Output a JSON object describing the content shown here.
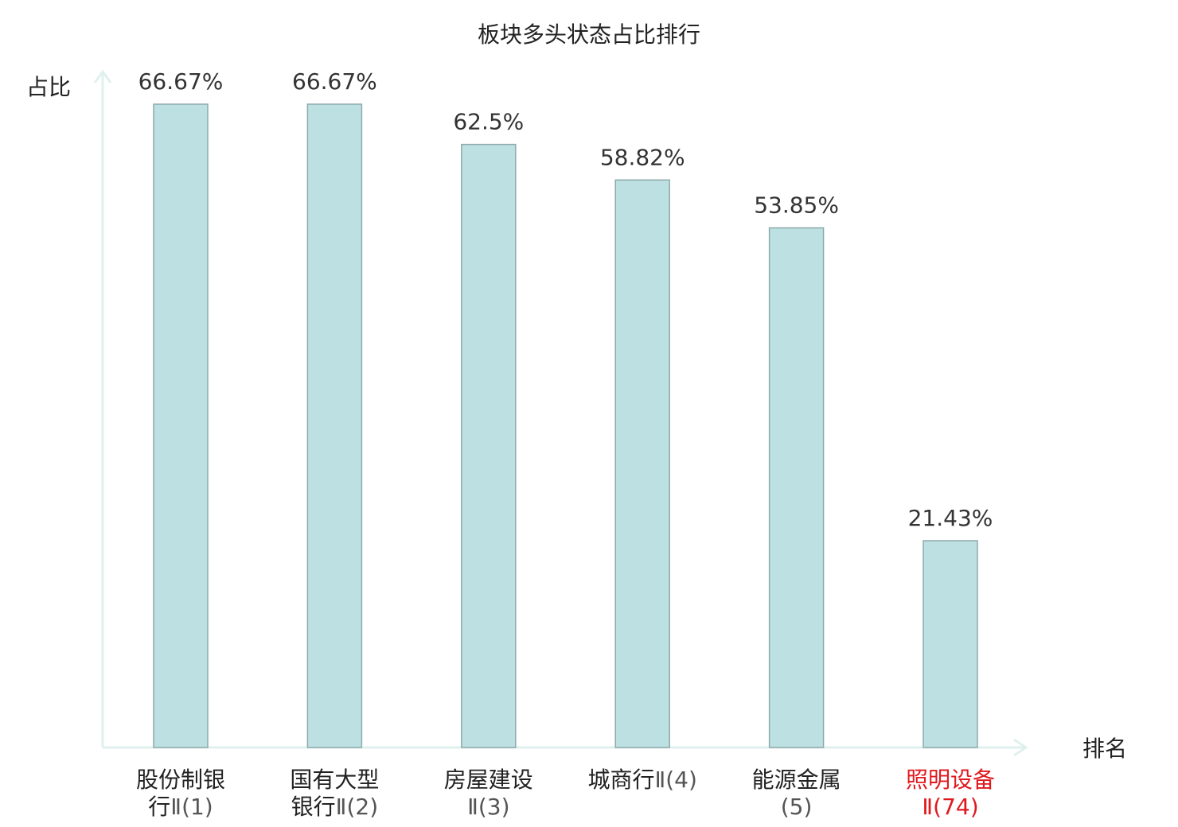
{
  "chart_data": {
    "type": "bar",
    "title": "板块多头状态占比排行",
    "ylabel": "占比",
    "xlabel": "排名",
    "ylim": [
      0,
      70
    ],
    "grid": false,
    "categories": [
      {
        "name": "股份制银",
        "line2": "行",
        "rank": "Ⅱ(1)",
        "highlight": false
      },
      {
        "name": "国有大型",
        "line2": "银行",
        "rank": "Ⅱ(2)",
        "highlight": false
      },
      {
        "name": "房屋建设",
        "line2": "",
        "rank": "Ⅱ(3)",
        "highlight": false
      },
      {
        "name": "城商行",
        "line2": "",
        "rank": "Ⅱ(4)",
        "highlight": false
      },
      {
        "name": "能源金属",
        "line2": "",
        "rank": "(5)",
        "highlight": false
      },
      {
        "name": "照明设备",
        "line2": "",
        "rank": "Ⅱ(74)",
        "highlight": true
      }
    ],
    "values": [
      66.67,
      66.67,
      62.5,
      58.82,
      53.85,
      21.43
    ],
    "value_labels": [
      "66.67%",
      "66.67%",
      "62.5%",
      "58.82%",
      "53.85%",
      "21.43%"
    ],
    "colors": {
      "bar_fill": "#bde1e3",
      "bar_stroke": "#8fa9ab",
      "axis": "#dff1ee",
      "highlight_text": "#e0191f"
    }
  }
}
